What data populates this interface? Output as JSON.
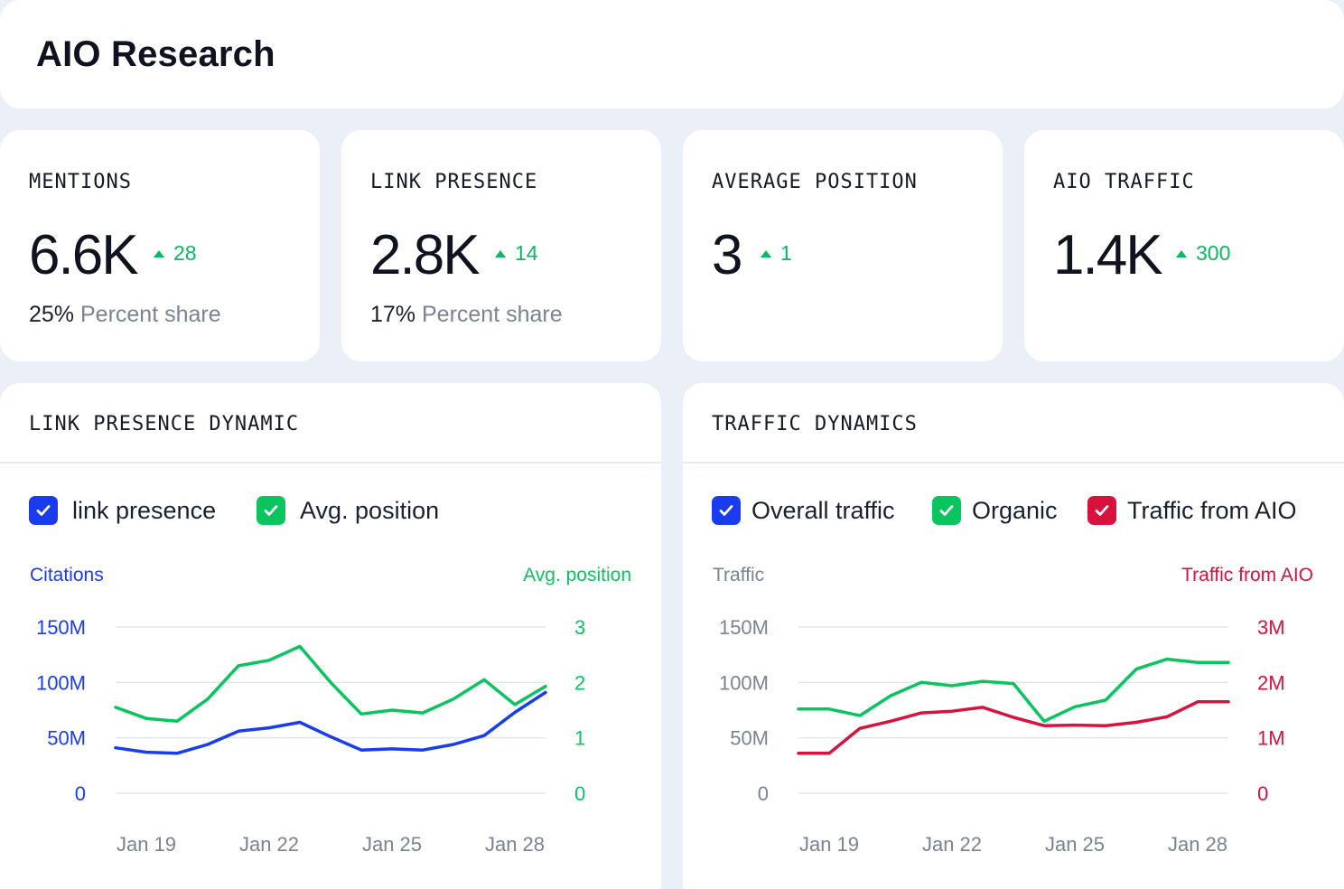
{
  "header": {
    "title": "AIO Research"
  },
  "kpis": [
    {
      "label": "MENTIONS",
      "value": "6.6K",
      "delta": "28",
      "sub_value": "25%",
      "sub_label": "Percent share"
    },
    {
      "label": "LINK PRESENCE",
      "value": "2.8K",
      "delta": "14",
      "sub_value": "17%",
      "sub_label": "Percent share"
    },
    {
      "label": "AVERAGE POSITION",
      "value": "3",
      "delta": "1"
    },
    {
      "label": "AIO TRAFFIC",
      "value": "1.4K",
      "delta": "300"
    }
  ],
  "colors": {
    "blue": "#1a3cf0",
    "green": "#0ac45e",
    "red": "#d8123c",
    "grid": "#e3e7ee",
    "muted": "#7a8293"
  },
  "link_panel": {
    "title": "LINK PRESENCE DYNAMIC",
    "legend": [
      {
        "label": "link presence",
        "color": "#1a3cf0",
        "checked": true
      },
      {
        "label": "Avg. position",
        "color": "#0ac45e",
        "checked": true
      }
    ],
    "left_axis_title": "Citations",
    "right_axis_title": "Avg. position"
  },
  "traffic_panel": {
    "title": "TRAFFIC DYNAMICS",
    "legend": [
      {
        "label": "Overall traffic",
        "color": "#1a3cf0",
        "checked": true
      },
      {
        "label": "Organic",
        "color": "#0ac45e",
        "checked": true
      },
      {
        "label": "Traffic from AIO",
        "color": "#d8123c",
        "checked": true
      }
    ],
    "left_axis_title": "Traffic",
    "right_axis_title": "Traffic from AIO"
  },
  "chart_data": [
    {
      "type": "line",
      "title": "LINK PRESENCE DYNAMIC",
      "x": [
        1,
        2,
        3,
        4,
        5,
        6,
        7,
        8,
        9,
        10,
        11,
        12,
        13,
        14,
        15
      ],
      "xticks": [
        2,
        6,
        10,
        14
      ],
      "xtick_labels": [
        "Jan 19",
        "Jan 22",
        "Jan 25",
        "Jan 28"
      ],
      "left_axis": {
        "label": "Citations",
        "range": [
          0,
          150
        ],
        "ticks": [
          0,
          50,
          100,
          150
        ],
        "tick_labels": [
          "0",
          "50M",
          "100M",
          "150M"
        ]
      },
      "right_axis": {
        "label": "Avg. position",
        "range": [
          0,
          3
        ],
        "ticks": [
          0,
          1,
          2,
          3
        ],
        "tick_labels": [
          "0",
          "1",
          "2",
          "3"
        ]
      },
      "series": [
        {
          "name": "link presence",
          "axis": "left",
          "color": "#1a3cf0",
          "values": [
            41,
            37,
            36,
            44,
            56,
            59,
            64,
            51,
            39,
            40,
            39,
            44,
            52,
            73,
            91
          ]
        },
        {
          "name": "Avg. position",
          "axis": "right",
          "color": "#0ac45e",
          "values": [
            1.55,
            1.35,
            1.3,
            1.7,
            2.3,
            2.4,
            2.65,
            2.0,
            1.43,
            1.5,
            1.45,
            1.7,
            2.05,
            1.6,
            1.93
          ]
        }
      ]
    },
    {
      "type": "line",
      "title": "TRAFFIC DYNAMICS",
      "x": [
        1,
        2,
        3,
        4,
        5,
        6,
        7,
        8,
        9,
        10,
        11,
        12,
        13,
        14,
        15
      ],
      "xticks": [
        2,
        6,
        10,
        14
      ],
      "xtick_labels": [
        "Jan 19",
        "Jan 22",
        "Jan 25",
        "Jan 28"
      ],
      "left_axis": {
        "label": "Traffic",
        "range": [
          0,
          150
        ],
        "ticks": [
          0,
          50,
          100,
          150
        ],
        "tick_labels": [
          "0",
          "50M",
          "100M",
          "150M"
        ]
      },
      "right_axis": {
        "label": "Traffic from AIO",
        "range": [
          0,
          3
        ],
        "ticks": [
          0,
          1,
          2,
          3
        ],
        "tick_labels": [
          "0",
          "1M",
          "2M",
          "3M"
        ]
      },
      "series": [
        {
          "name": "Organic",
          "axis": "left",
          "color": "#0ac45e",
          "values": [
            76,
            76,
            70,
            88,
            100,
            97,
            101,
            99,
            65,
            78,
            84,
            112,
            121,
            118,
            118
          ]
        },
        {
          "name": "Traffic from AIO",
          "axis": "right",
          "color": "#d8123c",
          "values": [
            0.72,
            0.72,
            1.17,
            1.3,
            1.45,
            1.48,
            1.55,
            1.37,
            1.22,
            1.23,
            1.22,
            1.28,
            1.38,
            1.65,
            1.65
          ]
        }
      ]
    }
  ]
}
